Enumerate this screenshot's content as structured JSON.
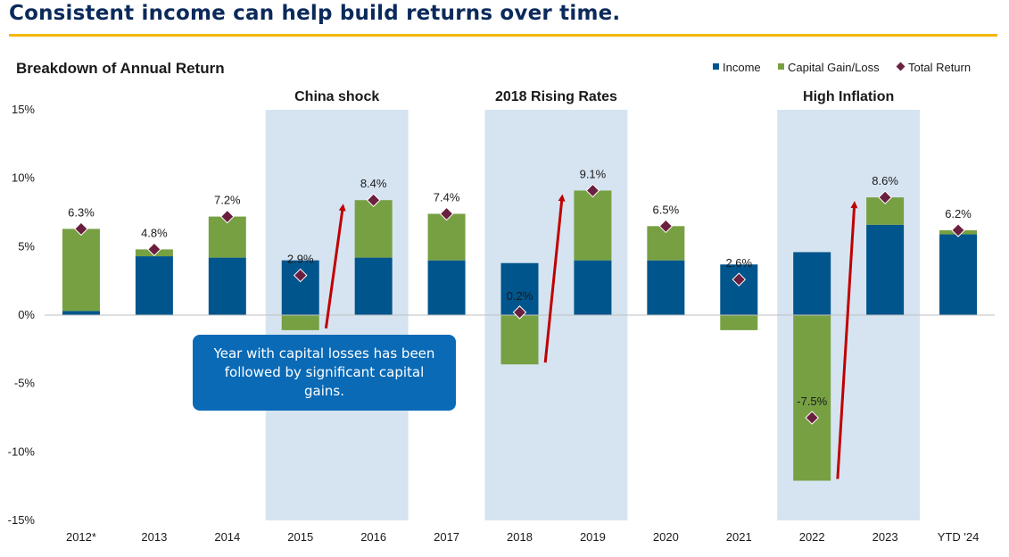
{
  "page": {
    "title": "Consistent income can help build returns over time.",
    "callout": "Year with capital losses has been followed by significant capital gains.",
    "accent_color": "#f2b705",
    "title_color": "#0b2a5b"
  },
  "chart_data": {
    "type": "bar",
    "title": "Breakdown of Annual Return",
    "categories": [
      "2012*",
      "2013",
      "2014",
      "2015",
      "2016",
      "2017",
      "2018",
      "2019",
      "2020",
      "2021",
      "2022",
      "2023",
      "YTD '24"
    ],
    "series": [
      {
        "name": "Income",
        "color": "#00558c",
        "values": [
          0.3,
          4.3,
          4.2,
          4.0,
          4.2,
          4.0,
          3.8,
          4.0,
          4.0,
          3.7,
          4.6,
          6.6,
          5.9
        ]
      },
      {
        "name": "Capital Gain/Loss",
        "color": "#77a043",
        "values": [
          6.0,
          0.5,
          3.0,
          -1.1,
          4.2,
          3.4,
          -3.6,
          5.1,
          2.5,
          -1.1,
          -12.1,
          2.0,
          0.3
        ]
      },
      {
        "name": "Total Return",
        "color": "#6b1f3f",
        "values": [
          6.3,
          4.8,
          7.2,
          2.9,
          8.4,
          7.4,
          0.2,
          9.1,
          6.5,
          2.6,
          -7.5,
          8.6,
          6.2
        ]
      }
    ],
    "total_labels": [
      "6.3%",
      "4.8%",
      "7.2%",
      "2.9%",
      "8.4%",
      "7.4%",
      "0.2%",
      "9.1%",
      "6.5%",
      "2.6%",
      "-7.5%",
      "8.6%",
      "6.2%"
    ],
    "yticks": [
      "15%",
      "10%",
      "5%",
      "0%",
      "-5%",
      "-10%",
      "-15%"
    ],
    "ylim": [
      -15,
      15
    ],
    "legend": [
      "Income",
      "Capital Gain/Loss",
      "Total Return"
    ],
    "legend_position": "top-right",
    "regions": [
      {
        "label": "China shock",
        "from": "2015",
        "to": "2016"
      },
      {
        "label": "2018 Rising Rates",
        "from": "2018",
        "to": "2019"
      },
      {
        "label": "High Inflation",
        "from": "2022",
        "to": "2023"
      }
    ],
    "region_color": "#d6e4f1",
    "arrows": [
      {
        "from": "2015",
        "to": "2016"
      },
      {
        "from": "2018",
        "to": "2019"
      },
      {
        "from": "2022",
        "to": "2023"
      }
    ],
    "arrow_color": "#c00000",
    "grid": false
  }
}
